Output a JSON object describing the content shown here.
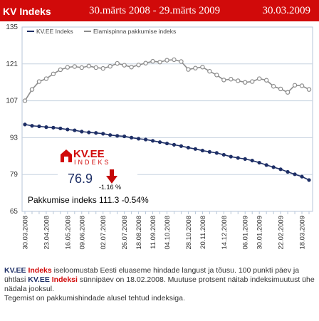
{
  "header": {
    "title": "KV Indeks",
    "range": "30.märts 2008 - 29.märts 2009",
    "date": "30.03.2009"
  },
  "colors": {
    "brand_red": "#d10a0a",
    "series_kv": "#1e2f66",
    "series_pakk": "#8c8c8c",
    "grid": "#b7c6d8"
  },
  "chart_data": {
    "type": "line",
    "x": [
      "30.03.2008",
      "06.04.2008",
      "13.04.2008",
      "23.04.2008",
      "30.04.2008",
      "08.05.2008",
      "16.05.2008",
      "25.05.2008",
      "09.06.2008",
      "17.06.2008",
      "26.06.2008",
      "02.07.2008",
      "10.07.2008",
      "18.07.2008",
      "26.07.2008",
      "10.08.2008",
      "18.08.2008",
      "26.08.2008",
      "11.09.2008",
      "25.09.2008",
      "04.10.2008",
      "12.10.2008",
      "20.10.2008",
      "28.10.2008",
      "06.11.2008",
      "20.11.2008",
      "28.11.2008",
      "05.12.2008",
      "14.12.2008",
      "22.12.2008",
      "30.12.2008",
      "06.01.2009",
      "14.01.2009",
      "30.01.2009",
      "07.02.2009",
      "14.02.2009",
      "22.02.2009",
      "02.03.2009",
      "10.03.2009",
      "18.03.2009",
      "29.03.2009"
    ],
    "xticks": [
      "30.03.2008",
      "23.04.2008",
      "16.05.2008",
      "09.06.2008",
      "02.07.2008",
      "26.07.2008",
      "18.08.2008",
      "11.09.2008",
      "04.10.2008",
      "28.10.2008",
      "20.11.2008",
      "14.12.2008",
      "06.01.2009",
      "30.01.2009",
      "22.02.2009",
      "18.03.2009"
    ],
    "series": [
      {
        "name": "KV.EE Indeks",
        "values": [
          98.0,
          97.5,
          97.3,
          97.0,
          96.8,
          96.5,
          96.1,
          95.8,
          95.3,
          95.0,
          94.8,
          94.5,
          94.0,
          93.7,
          93.5,
          93.0,
          92.6,
          92.3,
          91.8,
          91.3,
          90.8,
          90.3,
          89.8,
          89.2,
          88.7,
          88.1,
          87.6,
          87.2,
          86.5,
          85.8,
          85.3,
          84.9,
          84.3,
          83.5,
          82.6,
          81.8,
          81.0,
          80.0,
          79.1,
          78.2,
          76.9
        ]
      },
      {
        "name": "Elamispinna pakkumise indeks",
        "values": [
          107.0,
          111.3,
          114.3,
          115.4,
          117.2,
          118.8,
          119.7,
          120.0,
          119.6,
          120.2,
          119.6,
          119.3,
          120.1,
          121.2,
          120.5,
          119.8,
          120.6,
          121.3,
          122.0,
          121.7,
          122.4,
          122.6,
          121.9,
          118.9,
          119.4,
          119.8,
          118.2,
          116.8,
          114.9,
          115.2,
          114.6,
          114.0,
          114.3,
          115.4,
          114.8,
          112.5,
          111.5,
          110.2,
          112.9,
          112.7,
          111.3
        ]
      }
    ],
    "yticks": [
      65,
      79,
      93,
      107,
      121,
      135
    ],
    "ylim": [
      65,
      135
    ]
  },
  "badge": {
    "logo_main": "KV.EE",
    "logo_sub": "INDEKS",
    "value": "76.9",
    "change": "-1.16 %"
  },
  "pakkumise_text": "Pakkumise indeks 111.3 -0.54%",
  "description": {
    "p1_brand_blue": "KV.EE",
    "p1_brand_red": "Indeks",
    "p1_text": "iseloomustab Eesti eluaseme hindade langust ja tõusu. 100 punkti päev ja ühtlasi",
    "p1b_brand_blue": "KV.EE",
    "p1b_brand_red": "Indeksi",
    "p1b_text": "sünnipäev on 18.02.2008. Muutuse protsent näitab indeksimuutust ühe nädala jooksul.",
    "p2": "Tegemist on pakkumishindade alusel tehtud indeksiga."
  }
}
